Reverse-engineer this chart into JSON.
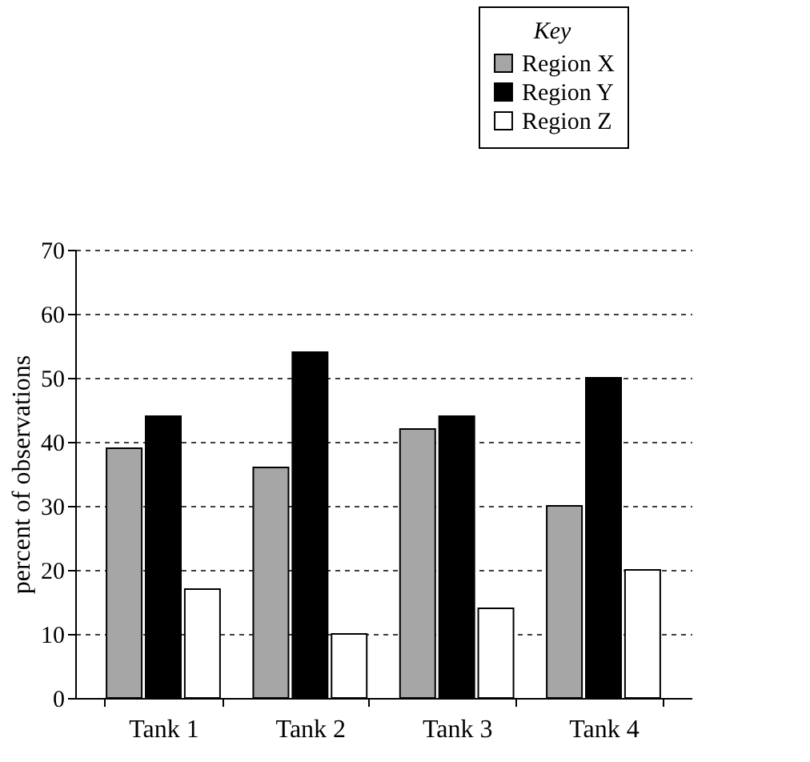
{
  "chart_data": {
    "type": "bar",
    "ylabel": "percent of observations",
    "legend_title": "Key",
    "categories": [
      "Tank 1",
      "Tank 2",
      "Tank 3",
      "Tank 4"
    ],
    "series": [
      {
        "name": "Region X",
        "color": "#a6a6a6",
        "values": [
          39,
          36,
          42,
          30
        ]
      },
      {
        "name": "Region Y",
        "color": "#000000",
        "values": [
          44,
          54,
          44,
          50
        ]
      },
      {
        "name": "Region Z",
        "color": "#ffffff",
        "values": [
          17,
          10,
          14,
          20
        ]
      }
    ],
    "ylim": [
      0,
      70
    ],
    "yticks": [
      0,
      10,
      20,
      30,
      40,
      50,
      60,
      70
    ],
    "grid": "y",
    "legend": "top right"
  }
}
